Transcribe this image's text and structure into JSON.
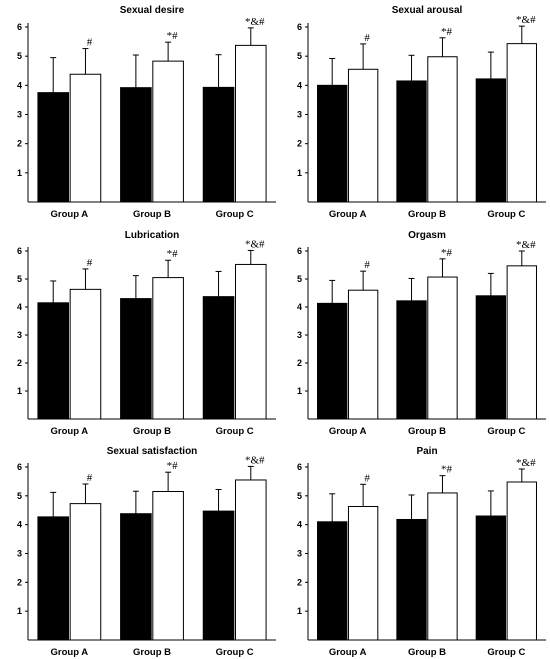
{
  "chart_data": [
    {
      "type": "bar",
      "title": "Sexual desire",
      "categories": [
        "Group A",
        "Group B",
        "Group C"
      ],
      "ylim": [
        0,
        6
      ],
      "yticks": [
        "1",
        "2",
        "3",
        "4",
        "5",
        "6"
      ],
      "series": [
        {
          "fill": "#000000",
          "values": [
            3.75,
            3.92,
            3.93
          ],
          "errors": [
            1.2,
            1.12,
            1.12
          ],
          "labels": [
            "",
            "",
            ""
          ]
        },
        {
          "fill": "#ffffff",
          "values": [
            4.38,
            4.83,
            5.37
          ],
          "errors": [
            0.88,
            0.65,
            0.6
          ],
          "labels": [
            "#",
            "*#",
            "*&#"
          ]
        }
      ]
    },
    {
      "type": "bar",
      "title": "Sexual arousal",
      "categories": [
        "Group A",
        "Group B",
        "Group C"
      ],
      "ylim": [
        0,
        6
      ],
      "yticks": [
        "1",
        "2",
        "3",
        "4",
        "5",
        "6"
      ],
      "series": [
        {
          "fill": "#000000",
          "values": [
            4.0,
            4.15,
            4.22
          ],
          "errors": [
            0.92,
            0.88,
            0.92
          ],
          "labels": [
            "",
            "",
            ""
          ]
        },
        {
          "fill": "#ffffff",
          "values": [
            4.55,
            4.98,
            5.43
          ],
          "errors": [
            0.87,
            0.65,
            0.6
          ],
          "labels": [
            "#",
            "*#",
            "*&#"
          ]
        }
      ]
    },
    {
      "type": "bar",
      "title": "Lubrication",
      "categories": [
        "Group A",
        "Group B",
        "Group C"
      ],
      "ylim": [
        0,
        6
      ],
      "yticks": [
        "1",
        "2",
        "3",
        "4",
        "5",
        "6"
      ],
      "series": [
        {
          "fill": "#000000",
          "values": [
            4.15,
            4.3,
            4.37
          ],
          "errors": [
            0.78,
            0.82,
            0.9
          ],
          "labels": [
            "",
            "",
            ""
          ]
        },
        {
          "fill": "#ffffff",
          "values": [
            4.63,
            5.05,
            5.52
          ],
          "errors": [
            0.73,
            0.62,
            0.5
          ],
          "labels": [
            "#",
            "*#",
            "*&#"
          ]
        }
      ]
    },
    {
      "type": "bar",
      "title": "Orgasm",
      "categories": [
        "Group A",
        "Group B",
        "Group C"
      ],
      "ylim": [
        0,
        6
      ],
      "yticks": [
        "1",
        "2",
        "3",
        "4",
        "5",
        "6"
      ],
      "series": [
        {
          "fill": "#000000",
          "values": [
            4.13,
            4.22,
            4.4
          ],
          "errors": [
            0.82,
            0.8,
            0.8
          ],
          "labels": [
            "",
            "",
            ""
          ]
        },
        {
          "fill": "#ffffff",
          "values": [
            4.6,
            5.07,
            5.47
          ],
          "errors": [
            0.68,
            0.65,
            0.53
          ],
          "labels": [
            "#",
            "*#",
            "*&#"
          ]
        }
      ]
    },
    {
      "type": "bar",
      "title": "Sexual satisfaction",
      "categories": [
        "Group A",
        "Group B",
        "Group C"
      ],
      "ylim": [
        0,
        6
      ],
      "yticks": [
        "1",
        "2",
        "3",
        "4",
        "5",
        "6"
      ],
      "series": [
        {
          "fill": "#000000",
          "values": [
            4.27,
            4.38,
            4.47
          ],
          "errors": [
            0.85,
            0.78,
            0.75
          ],
          "labels": [
            "",
            "",
            ""
          ]
        },
        {
          "fill": "#ffffff",
          "values": [
            4.73,
            5.15,
            5.55
          ],
          "errors": [
            0.68,
            0.67,
            0.47
          ],
          "labels": [
            "#",
            "*#",
            "*&#"
          ]
        }
      ]
    },
    {
      "type": "bar",
      "title": "Pain",
      "categories": [
        "Group A",
        "Group B",
        "Group C"
      ],
      "ylim": [
        0,
        6
      ],
      "yticks": [
        "1",
        "2",
        "3",
        "4",
        "5",
        "6"
      ],
      "series": [
        {
          "fill": "#000000",
          "values": [
            4.1,
            4.18,
            4.3
          ],
          "errors": [
            0.97,
            0.85,
            0.87
          ],
          "labels": [
            "",
            "",
            ""
          ]
        },
        {
          "fill": "#ffffff",
          "values": [
            4.63,
            5.1,
            5.48
          ],
          "errors": [
            0.77,
            0.6,
            0.45
          ],
          "labels": [
            "#",
            "*#",
            "*&#"
          ]
        }
      ]
    }
  ]
}
